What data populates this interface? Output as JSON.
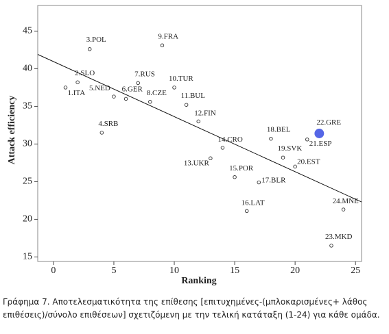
{
  "chart_data": {
    "type": "scatter",
    "x_label": "Ranking",
    "y_label": "Attack efficiency",
    "labels": [
      "1.ITA",
      "2.SLO",
      "3.POL",
      "4.SRB",
      "5.NED",
      "6.GER",
      "7.RUS",
      "8.CZE",
      "9.FRA",
      "10.TUR",
      "11.BUL",
      "12.FIN",
      "13.UKR",
      "14.CRO",
      "15.POR",
      "16.LAT",
      "17.BLR",
      "18.BEL",
      "19.SVK",
      "20.EST",
      "21.ESP",
      "22.GRE",
      "23.MKD",
      "24.MNE"
    ],
    "x": [
      1,
      2,
      3,
      4,
      5,
      6,
      7,
      8,
      9,
      10,
      11,
      12,
      13,
      14,
      15,
      16,
      17,
      18,
      19,
      20,
      21,
      22,
      23,
      24
    ],
    "y": [
      37.5,
      38.2,
      42.6,
      31.5,
      36.3,
      36.0,
      38.1,
      35.6,
      43.1,
      37.5,
      35.2,
      33.0,
      28.1,
      29.5,
      25.6,
      21.1,
      24.9,
      30.7,
      28.2,
      27.0,
      30.6,
      31.4,
      16.5,
      21.3
    ],
    "color": "#ffffff",
    "highlight": {
      "label": "22.GRE",
      "color": "#5566e6"
    },
    "trendline": {
      "x": [
        -1.3,
        25.5
      ],
      "y": [
        41.9,
        22.3
      ]
    },
    "xlim": [
      -1.3,
      25.5
    ],
    "xticks": [
      0,
      5,
      10,
      15,
      20,
      25
    ],
    "ylim": [
      14.4,
      48.4
    ],
    "yticks": [
      15,
      20,
      25,
      30,
      35,
      40,
      45
    ],
    "grid": false
  },
  "caption": "Γράφημα 7. Αποτελεσματικότητα της επίθεσης [επιτυχημένες-(μπλοκαρισμένες+ λάθος επιθέσεις)/σύνολο επιθέσεων] σχετιζόμενη με την τελική κατάταξη (1-24) για κάθε ομάδα."
}
